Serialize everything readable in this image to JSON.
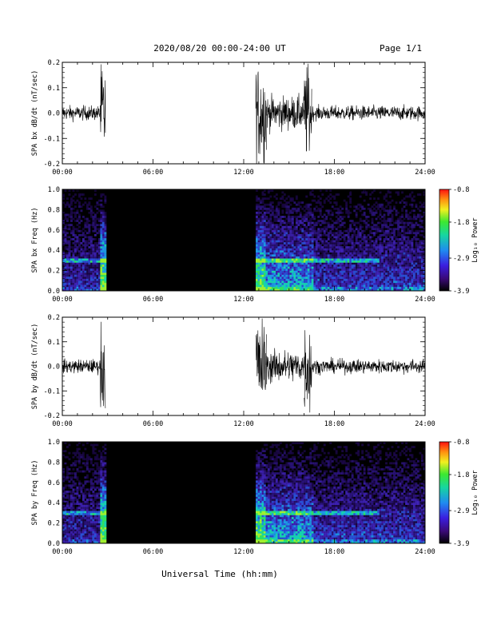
{
  "header": {
    "title": "2020/08/20  00:00-24:00 UT",
    "page_label": "Page 1/1"
  },
  "footer": {
    "xlabel": "Universal Time (hh:mm)"
  },
  "chart_data": [
    {
      "type": "line",
      "ylabel": "SPA bx dB/dt (nT/sec)",
      "xlim": [
        0,
        24
      ],
      "ylim": [
        -0.2,
        0.2
      ],
      "x_tick_labels": [
        "00:00",
        "06:00",
        "12:00",
        "18:00",
        "24:00"
      ],
      "y_tick_labels": [
        "-0.2",
        "-0.1",
        "0.0",
        "0.1",
        "0.2"
      ],
      "segments": [
        {
          "t_start": 0.0,
          "t_end": 2.5,
          "amplitude": 0.03
        },
        {
          "t_start": 2.5,
          "t_end": 2.85,
          "amplitude": 0.2
        },
        {
          "t_start": 2.85,
          "t_end": 12.8,
          "amplitude": 0.0
        },
        {
          "t_start": 12.8,
          "t_end": 13.5,
          "amplitude": 0.2
        },
        {
          "t_start": 13.5,
          "t_end": 16.0,
          "amplitude": 0.07
        },
        {
          "t_start": 16.0,
          "t_end": 16.5,
          "amplitude": 0.2
        },
        {
          "t_start": 16.5,
          "t_end": 24.0,
          "amplitude": 0.03
        }
      ]
    },
    {
      "type": "heatmap",
      "ylabel": "SPA bx Freq (Hz)",
      "xlim": [
        0,
        24
      ],
      "ylim": [
        0,
        1.0
      ],
      "x_tick_labels": [
        "00:00",
        "06:00",
        "12:00",
        "18:00",
        "24:00"
      ],
      "y_tick_labels": [
        "0.0",
        "0.2",
        "0.4",
        "0.6",
        "0.8",
        "1.0"
      ],
      "colorbar": {
        "label": "Log₁₀ Power",
        "range": [
          -3.9,
          -0.8
        ],
        "tick_labels": [
          "-0.8",
          "-1.8",
          "-2.9",
          "-3.9"
        ]
      },
      "gap": [
        2.85,
        12.8
      ],
      "band_freq": 0.3
    },
    {
      "type": "line",
      "ylabel": "SPA by dB/dt (nT/sec)",
      "xlim": [
        0,
        24
      ],
      "ylim": [
        -0.2,
        0.2
      ],
      "x_tick_labels": [
        "00:00",
        "06:00",
        "12:00",
        "18:00",
        "24:00"
      ],
      "y_tick_labels": [
        "-0.2",
        "-0.1",
        "0.0",
        "0.1",
        "0.2"
      ],
      "segments": [
        {
          "t_start": 0.0,
          "t_end": 2.5,
          "amplitude": 0.03
        },
        {
          "t_start": 2.5,
          "t_end": 2.85,
          "amplitude": 0.2
        },
        {
          "t_start": 2.85,
          "t_end": 12.8,
          "amplitude": 0.0
        },
        {
          "t_start": 12.8,
          "t_end": 13.5,
          "amplitude": 0.2
        },
        {
          "t_start": 13.5,
          "t_end": 16.0,
          "amplitude": 0.07
        },
        {
          "t_start": 16.0,
          "t_end": 16.5,
          "amplitude": 0.2
        },
        {
          "t_start": 16.5,
          "t_end": 24.0,
          "amplitude": 0.03
        }
      ]
    },
    {
      "type": "heatmap",
      "ylabel": "SPA by Freq (Hz)",
      "xlim": [
        0,
        24
      ],
      "ylim": [
        0,
        1.0
      ],
      "x_tick_labels": [
        "00:00",
        "06:00",
        "12:00",
        "18:00",
        "24:00"
      ],
      "y_tick_labels": [
        "0.0",
        "0.2",
        "0.4",
        "0.6",
        "0.8",
        "1.0"
      ],
      "colorbar": {
        "label": "Log₁₀ Power",
        "range": [
          -3.9,
          -0.8
        ],
        "tick_labels": [
          "-0.8",
          "-1.8",
          "-2.9",
          "-3.9"
        ]
      },
      "gap": [
        2.85,
        12.8
      ],
      "band_freq": 0.3
    }
  ]
}
